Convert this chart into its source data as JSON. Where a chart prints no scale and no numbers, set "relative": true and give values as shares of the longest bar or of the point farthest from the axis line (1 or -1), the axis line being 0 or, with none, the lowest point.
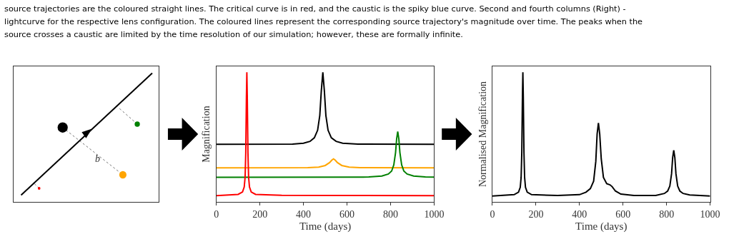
{
  "chart_data": [
    {
      "type": "other",
      "annotations": [
        "source trajectories are the coloured straight lines. The critical curve is in red, and the caustic is the spiky blue curve. Second and fourth columns (Right) -",
        "lightcurve for the respective lens configuration. The coloured lines represent the corresponding source trajectory's magnitude over time. The peaks when the",
        "source crosses a caustic are limited by the time resolution of our simulation; however, these are formally infinite.",
        "b"
      ]
    },
    {
      "type": "line",
      "relative": true,
      "xlabel": "Time (days)",
      "ylabel": "Magnification",
      "xlim": [
        0,
        1000
      ],
      "xticks": [
        0,
        200,
        400,
        600,
        800,
        1000
      ],
      "tick_labels": "x",
      "series": [
        {
          "color": "#000000",
          "x": [
            0,
            350,
            400,
            430,
            450,
            465,
            475,
            482,
            489,
            496,
            503,
            513,
            528,
            550,
            580,
            650,
            1000
          ],
          "values": [
            0.444,
            0.446,
            0.453,
            0.467,
            0.495,
            0.553,
            0.667,
            0.857,
            1.0,
            0.857,
            0.667,
            0.553,
            0.495,
            0.467,
            0.453,
            0.446,
            0.444
          ]
        },
        {
          "color": "#ffa500",
          "x": [
            0,
            420,
            470,
            500,
            520,
            530,
            538,
            546,
            556,
            576,
            610,
            660,
            1000
          ],
          "values": [
            0.263,
            0.264,
            0.269,
            0.281,
            0.303,
            0.322,
            0.332,
            0.322,
            0.303,
            0.281,
            0.269,
            0.264,
            0.263
          ]
        },
        {
          "color": "#008000",
          "x": [
            0,
            700,
            760,
            790,
            805,
            815,
            823,
            828,
            833,
            838,
            843,
            851,
            861,
            876,
            906,
            960,
            1000
          ],
          "values": [
            0.19,
            0.192,
            0.2,
            0.215,
            0.238,
            0.286,
            0.381,
            0.486,
            0.543,
            0.486,
            0.381,
            0.286,
            0.238,
            0.215,
            0.2,
            0.192,
            0.191
          ]
        },
        {
          "color": "#ff0000",
          "x": [
            0,
            100,
            120,
            128,
            132,
            135,
            138,
            140,
            142,
            145,
            148,
            152,
            160,
            180,
            300,
            1000
          ],
          "values": [
            0.048,
            0.058,
            0.077,
            0.115,
            0.191,
            0.381,
            0.81,
            1,
            0.81,
            0.381,
            0.191,
            0.115,
            0.077,
            0.058,
            0.051,
            0.048
          ]
        }
      ]
    },
    {
      "type": "line",
      "relative": true,
      "xlabel": "Time (days)",
      "ylabel": "Normalised Magnification",
      "xlim": [
        0,
        1000
      ],
      "xticks": [
        0,
        200,
        400,
        600,
        800,
        1000
      ],
      "tick_labels": "x",
      "series": [
        {
          "color": "#000000",
          "x": [
            0,
            100,
            120,
            128,
            132,
            135,
            138,
            140,
            142,
            145,
            148,
            152,
            160,
            180,
            300,
            400,
            430,
            450,
            465,
            475,
            481,
            487,
            493,
            500,
            510,
            525,
            540,
            550,
            565,
            590,
            650,
            750,
            790,
            805,
            815,
            823,
            828,
            833,
            838,
            843,
            851,
            861,
            876,
            906,
            1000
          ],
          "values": [
            0.046,
            0.056,
            0.075,
            0.113,
            0.189,
            0.38,
            0.809,
            1,
            0.809,
            0.38,
            0.189,
            0.113,
            0.075,
            0.056,
            0.049,
            0.056,
            0.075,
            0.103,
            0.16,
            0.313,
            0.523,
            0.609,
            0.523,
            0.332,
            0.189,
            0.141,
            0.132,
            0.118,
            0.084,
            0.06,
            0.05,
            0.05,
            0.065,
            0.084,
            0.122,
            0.218,
            0.342,
            0.398,
            0.342,
            0.218,
            0.122,
            0.084,
            0.065,
            0.054,
            0.046
          ]
        }
      ]
    }
  ]
}
